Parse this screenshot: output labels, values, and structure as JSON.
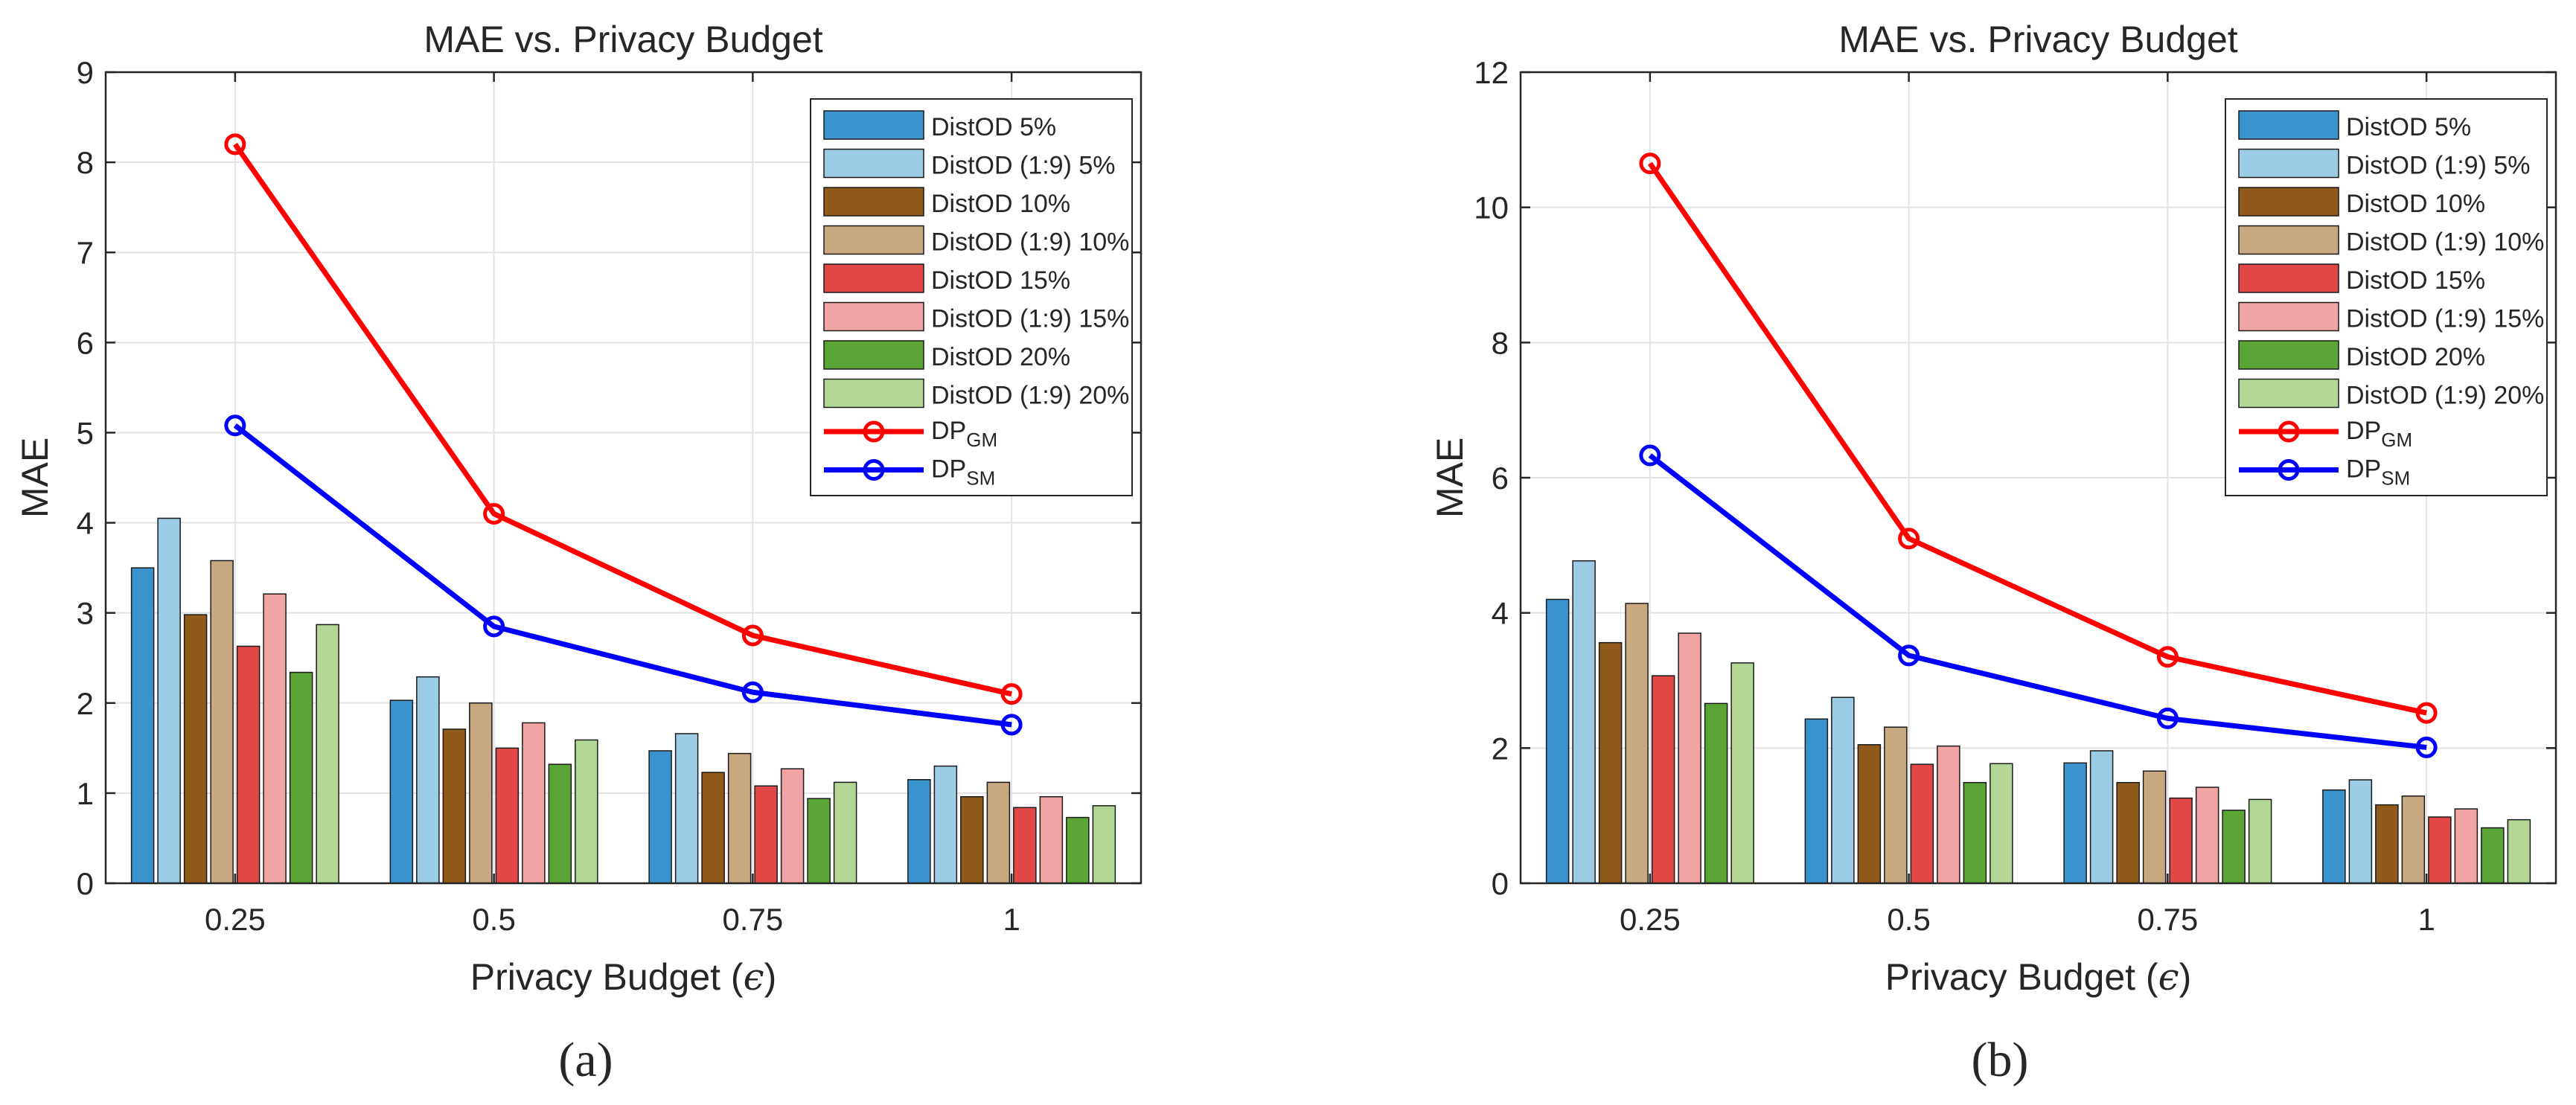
{
  "chart_data": [
    {
      "panel_label": "(a)",
      "type": "bar",
      "title": "MAE vs. Privacy Budget",
      "xlabel": "Privacy Budget (",
      "xlabel_symbol": "ϵ",
      "xlabel_close": ")",
      "ylabel": "MAE",
      "ylim": [
        0,
        9
      ],
      "yticks": [
        0,
        1,
        2,
        3,
        4,
        5,
        6,
        7,
        8,
        9
      ],
      "grid": true,
      "legend_position": "top-right",
      "categories": [
        "0.25",
        "0.5",
        "0.75",
        "1"
      ],
      "series": [
        {
          "name": "DistOD 5%",
          "color": "#3a93cd",
          "values": [
            3.5,
            2.03,
            1.47,
            1.15
          ]
        },
        {
          "name": "DistOD (1:9) 5%",
          "color": "#9ccbe5",
          "values": [
            4.05,
            2.29,
            1.66,
            1.3
          ]
        },
        {
          "name": "DistOD 10%",
          "color": "#8f5a1a",
          "values": [
            2.98,
            1.71,
            1.23,
            0.96
          ]
        },
        {
          "name": "DistOD (1:9) 10%",
          "color": "#c7a881",
          "values": [
            3.58,
            2.0,
            1.44,
            1.12
          ]
        },
        {
          "name": "DistOD 15%",
          "color": "#e34848",
          "values": [
            2.63,
            1.5,
            1.08,
            0.84
          ]
        },
        {
          "name": "DistOD (1:9) 15%",
          "color": "#f1a4a4",
          "values": [
            3.21,
            1.78,
            1.27,
            0.96
          ]
        },
        {
          "name": "DistOD 20%",
          "color": "#5aa536",
          "values": [
            2.34,
            1.32,
            0.94,
            0.73
          ]
        },
        {
          "name": "DistOD (1:9) 20%",
          "color": "#b2d797",
          "values": [
            2.87,
            1.59,
            1.12,
            0.86
          ]
        }
      ],
      "lines": [
        {
          "name": "DP",
          "sub": "GM",
          "color": "#ff0000",
          "values": [
            8.2,
            4.1,
            2.75,
            2.1
          ]
        },
        {
          "name": "DP",
          "sub": "SM",
          "color": "#0000ff",
          "values": [
            5.08,
            2.85,
            2.12,
            1.76
          ]
        }
      ]
    },
    {
      "panel_label": "(b)",
      "type": "bar",
      "title": "MAE vs. Privacy Budget",
      "xlabel": "Privacy Budget (",
      "xlabel_symbol": "ϵ",
      "xlabel_close": ")",
      "ylabel": "MAE",
      "ylim": [
        0,
        12
      ],
      "yticks": [
        0,
        2,
        4,
        6,
        8,
        10,
        12
      ],
      "grid": true,
      "legend_position": "top-right",
      "categories": [
        "0.25",
        "0.5",
        "0.75",
        "1"
      ],
      "series": [
        {
          "name": "DistOD 5%",
          "color": "#3a93cd",
          "values": [
            4.2,
            2.43,
            1.78,
            1.38
          ]
        },
        {
          "name": "DistOD (1:9) 5%",
          "color": "#9ccbe5",
          "values": [
            4.77,
            2.75,
            1.96,
            1.53
          ]
        },
        {
          "name": "DistOD 10%",
          "color": "#8f5a1a",
          "values": [
            3.56,
            2.05,
            1.49,
            1.16
          ]
        },
        {
          "name": "DistOD (1:9) 10%",
          "color": "#c7a881",
          "values": [
            4.14,
            2.31,
            1.66,
            1.29
          ]
        },
        {
          "name": "DistOD 15%",
          "color": "#e34848",
          "values": [
            3.07,
            1.76,
            1.26,
            0.98
          ]
        },
        {
          "name": "DistOD (1:9) 15%",
          "color": "#f1a4a4",
          "values": [
            3.7,
            2.03,
            1.42,
            1.1
          ]
        },
        {
          "name": "DistOD 20%",
          "color": "#5aa536",
          "values": [
            2.66,
            1.49,
            1.08,
            0.82
          ]
        },
        {
          "name": "DistOD (1:9) 20%",
          "color": "#b2d797",
          "values": [
            3.26,
            1.77,
            1.24,
            0.94
          ]
        }
      ],
      "lines": [
        {
          "name": "DP",
          "sub": "GM",
          "color": "#ff0000",
          "values": [
            10.65,
            5.1,
            3.35,
            2.52
          ]
        },
        {
          "name": "DP",
          "sub": "SM",
          "color": "#0000ff",
          "values": [
            6.33,
            3.37,
            2.44,
            2.01
          ]
        }
      ]
    }
  ]
}
